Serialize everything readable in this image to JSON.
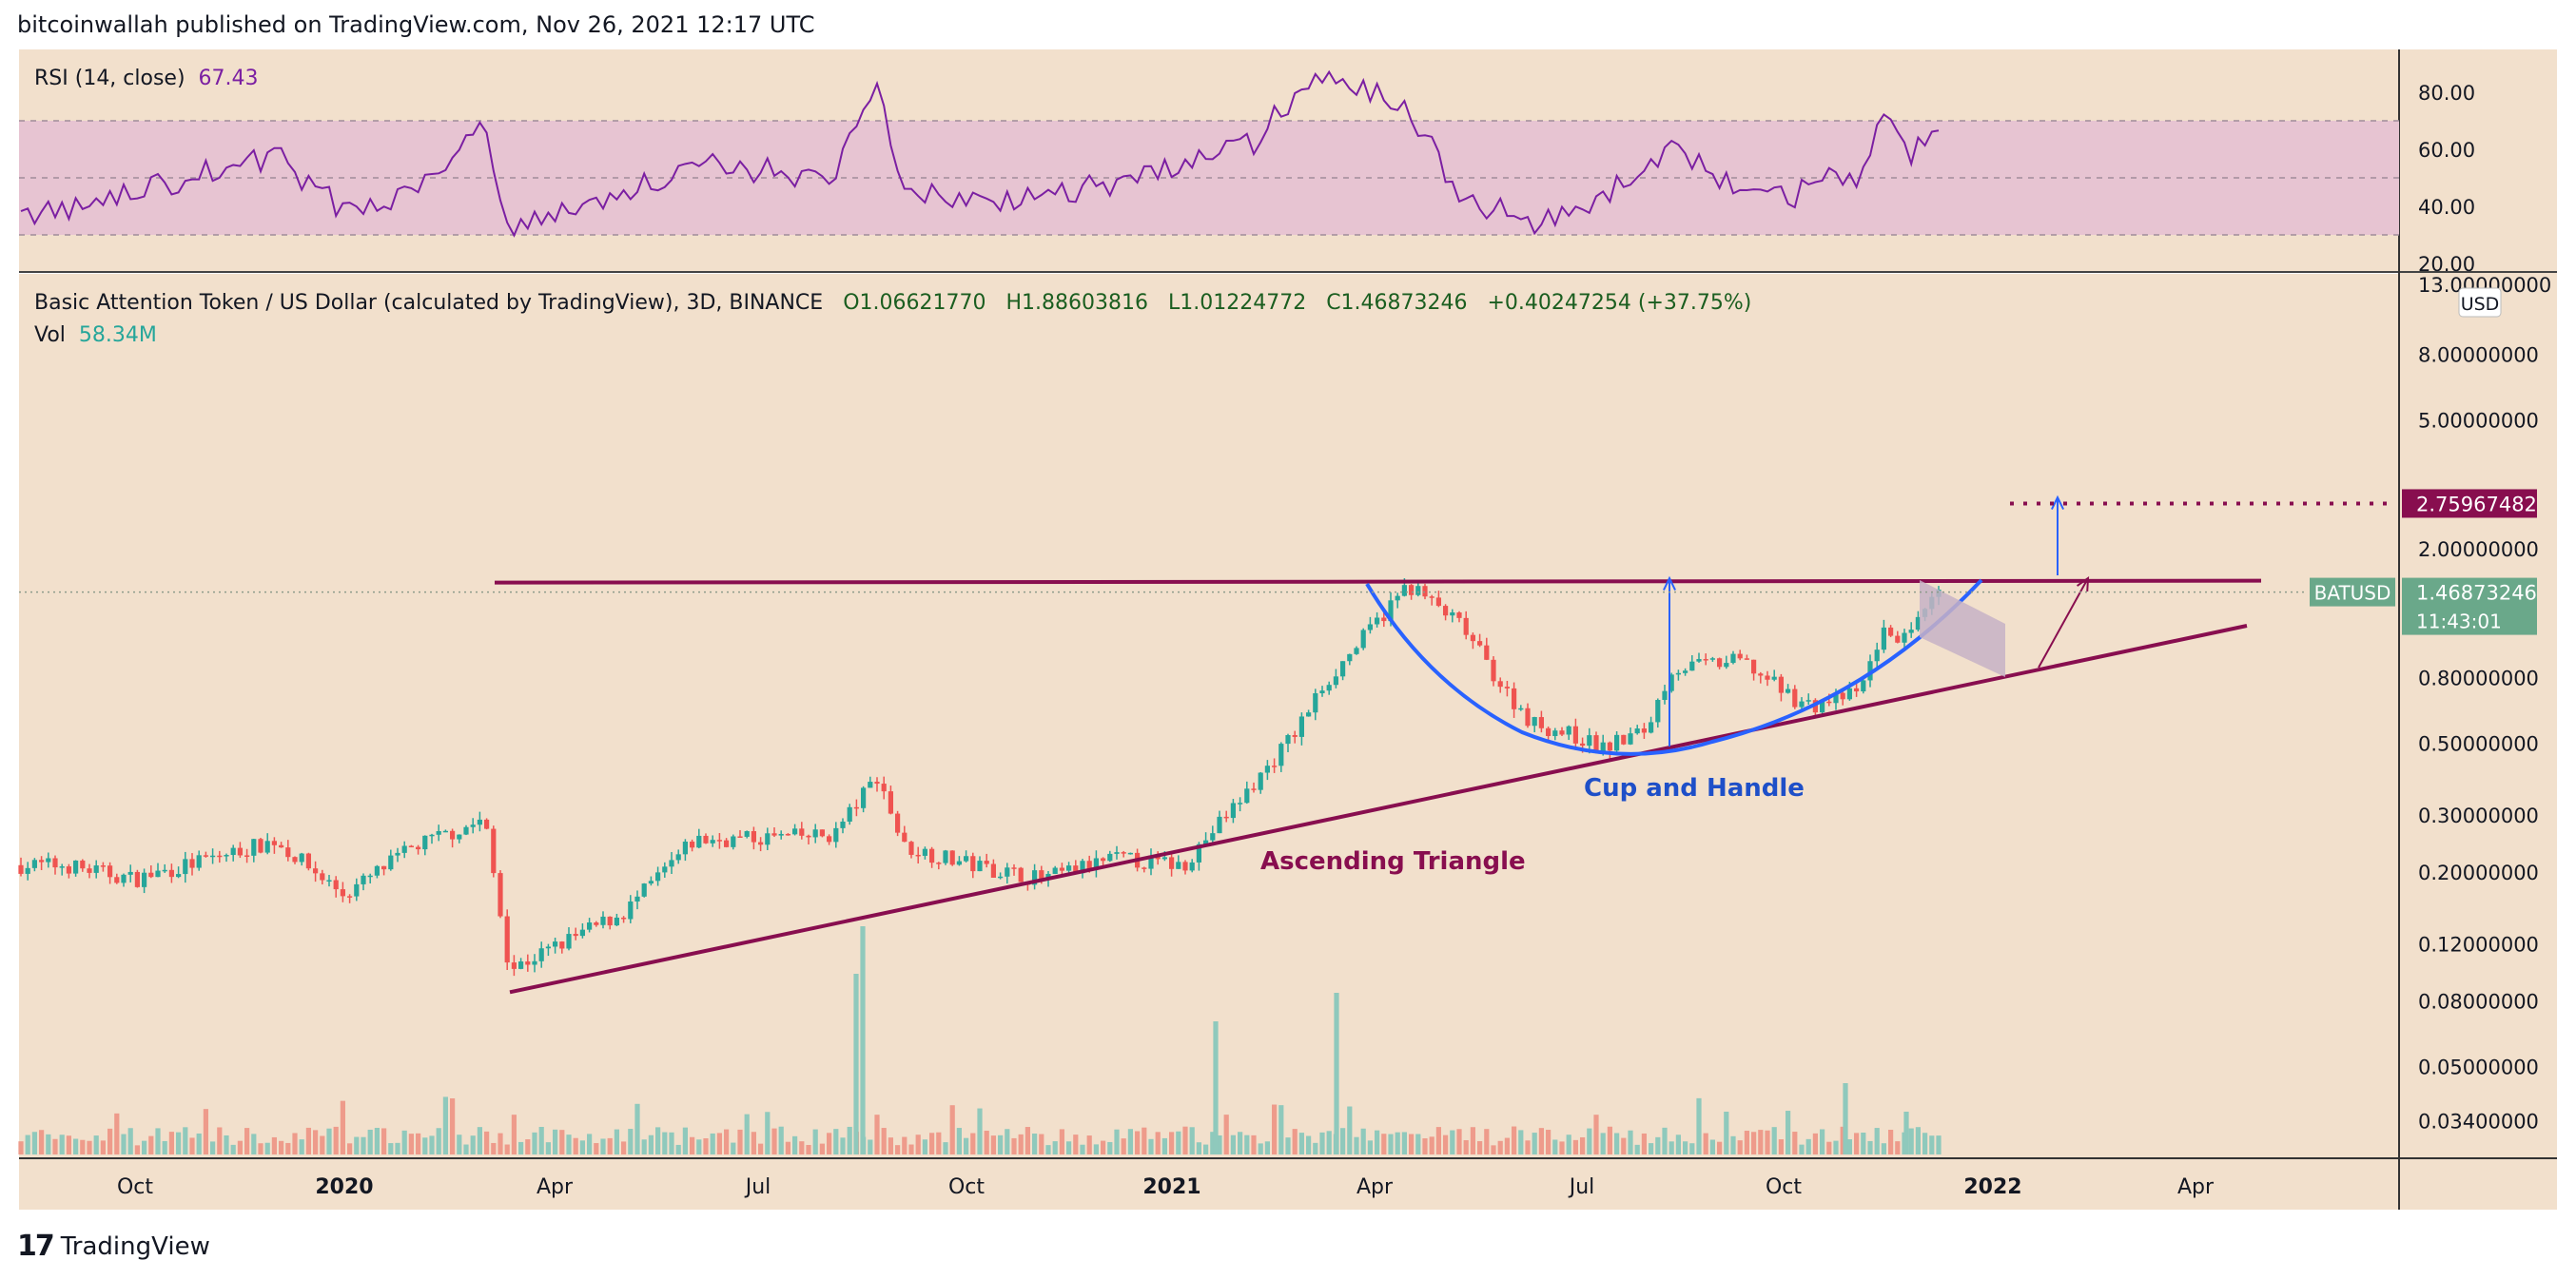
{
  "header": {
    "published": "bitcoinwallah published on TradingView.com, Nov 26, 2021 12:17 UTC"
  },
  "footer": {
    "brand": "TradingView"
  },
  "rsi_panel": {
    "label": "RSI (14, close)",
    "value": "67.43",
    "ticks": [
      "80.00",
      "60.00",
      "40.00",
      "20.00"
    ]
  },
  "price_panel": {
    "symbol": "Basic Attention Token / US Dollar (calculated by TradingView), 3D, BINANCE",
    "open": "O1.06621770",
    "high": "H1.88603816",
    "low": "L1.01224772",
    "close": "C1.46873246",
    "change": "+0.40247254 (+37.75%)",
    "vol_label": "Vol",
    "vol_value": "58.34M",
    "currency": "USD",
    "top_tick": "13.00000000",
    "ticks": [
      "8.00000000",
      "5.00000000",
      "2.00000000",
      "0.80000000",
      "0.50000000",
      "0.30000000",
      "0.20000000",
      "0.12000000",
      "0.08000000",
      "0.05000000",
      "0.03400000"
    ],
    "ticker_label": "BATUSD",
    "last_price": "1.46873246",
    "countdown": "11:43:01",
    "target_price": "2.75967482"
  },
  "time_axis": [
    "Oct",
    "2020",
    "Apr",
    "Jul",
    "Oct",
    "2021",
    "Apr",
    "Jul",
    "Oct",
    "2022",
    "Apr"
  ],
  "annotations": {
    "ascending_triangle": "Ascending Triangle",
    "cup_and_handle": "Cup and Handle"
  },
  "colors": {
    "bg": "#f2e0cc",
    "up": "#26a69a",
    "down": "#ef5350",
    "rsi": "#7b1fa2",
    "triangle": "#880e4f",
    "cup": "#2962ff"
  },
  "chart_data": {
    "type": "candlestick",
    "title": "Basic Attention Token / US Dollar (calculated by TradingView), 3D, BINANCE",
    "scale": "log",
    "ylim": [
      0.028,
      13.0
    ],
    "rsi_ylim": [
      20,
      90
    ],
    "series_anchors": {
      "x": [
        "2019-09",
        "2019-10",
        "2019-12",
        "2020-01",
        "2020-02",
        "2020-03",
        "2020-03-12",
        "2020-05",
        "2020-06",
        "2020-08",
        "2020-08-20",
        "2020-09",
        "2020-10",
        "2020-11",
        "2020-12",
        "2021-01",
        "2021-02",
        "2021-02-20",
        "2021-03",
        "2021-04-08",
        "2021-05",
        "2021-05-20",
        "2021-06",
        "2021-06-22",
        "2021-07",
        "2021-07-20",
        "2021-08",
        "2021-09",
        "2021-09-22",
        "2021-10",
        "2021-10-22",
        "2021-11",
        "2021-11-13",
        "2021-11-26"
      ],
      "close": [
        0.21,
        0.19,
        0.25,
        0.17,
        0.24,
        0.29,
        0.1,
        0.15,
        0.25,
        0.26,
        0.4,
        0.24,
        0.21,
        0.19,
        0.22,
        0.21,
        0.37,
        0.55,
        0.75,
        1.55,
        1.15,
        0.72,
        0.58,
        0.52,
        0.48,
        0.55,
        0.85,
        0.9,
        0.7,
        0.65,
        0.72,
        1.1,
        1.05,
        1.47
      ],
      "rsi": [
        38,
        45,
        58,
        38,
        46,
        70,
        32,
        45,
        55,
        50,
        82,
        45,
        42,
        44,
        48,
        55,
        62,
        80,
        85,
        75,
        42,
        38,
        35,
        36,
        42,
        55,
        60,
        45,
        42,
        50,
        48,
        72,
        58,
        67
      ]
    },
    "overlays": {
      "resistance": 1.55,
      "support_line": [
        [
          "2020-03-12",
          0.085
        ],
        [
          "2022-03",
          1.05
        ]
      ],
      "target": 2.75967482
    }
  }
}
